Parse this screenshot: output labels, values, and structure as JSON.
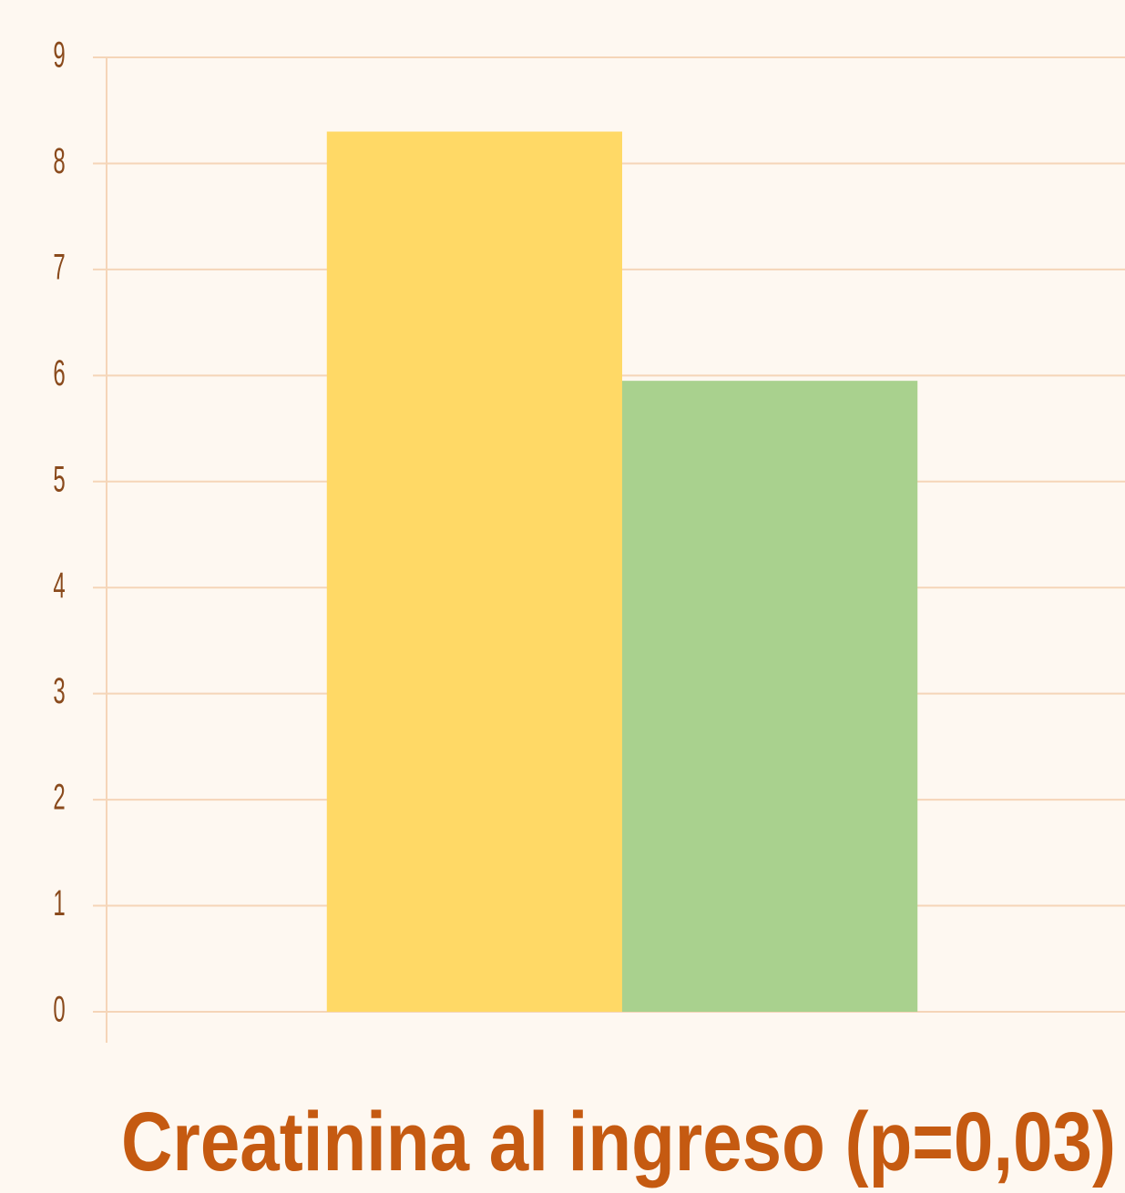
{
  "chart_data": {
    "type": "bar",
    "title": "Creatinina al ingreso (p=0,03)",
    "categories": [
      null,
      null
    ],
    "values": [
      8.3,
      5.95
    ],
    "colors": [
      "#ffd966",
      "#a9d18e"
    ],
    "ylim": [
      0,
      9
    ],
    "yticks": [
      0,
      1,
      2,
      3,
      4,
      5,
      6,
      7,
      8,
      9
    ],
    "grid": true
  }
}
